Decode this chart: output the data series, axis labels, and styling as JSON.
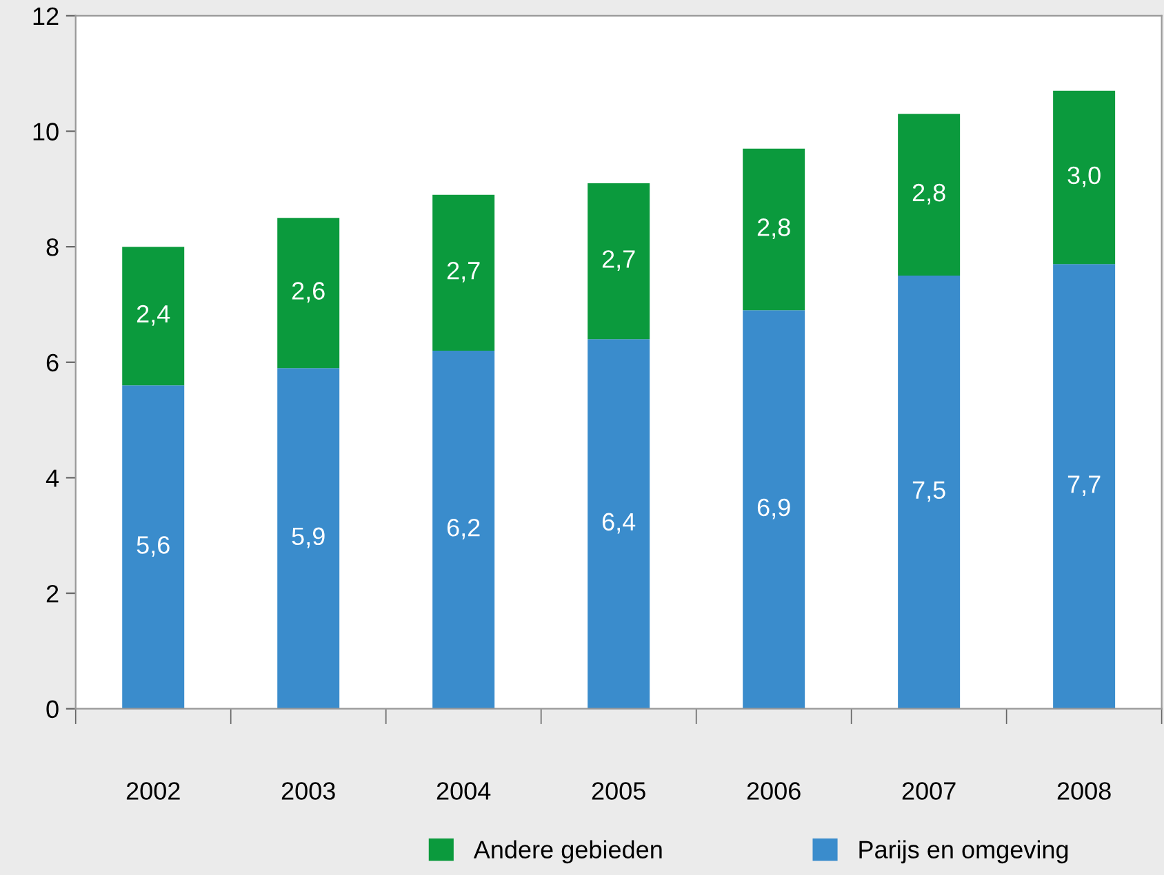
{
  "chart_data": {
    "type": "bar",
    "stacked": true,
    "categories": [
      "2002",
      "2003",
      "2004",
      "2005",
      "2006",
      "2007",
      "2008"
    ],
    "series": [
      {
        "name": "Parijs en omgeving",
        "color": "#3a8ccc",
        "values": [
          5.6,
          5.9,
          6.2,
          6.4,
          6.9,
          7.5,
          7.7
        ],
        "value_labels": [
          "5,6",
          "5,9",
          "6,2",
          "6,4",
          "6,9",
          "7,5",
          "7,7"
        ]
      },
      {
        "name": "Andere gebieden",
        "color": "#0b9a3d",
        "values": [
          2.4,
          2.6,
          2.7,
          2.7,
          2.8,
          2.8,
          3.0
        ],
        "value_labels": [
          "2,4",
          "2,6",
          "2,7",
          "2,7",
          "2,8",
          "2,8",
          "3,0"
        ]
      }
    ],
    "ylim": [
      0,
      12
    ],
    "yticks": [
      0,
      2,
      4,
      6,
      8,
      10,
      12
    ],
    "grid": false,
    "legend": "bottom"
  }
}
